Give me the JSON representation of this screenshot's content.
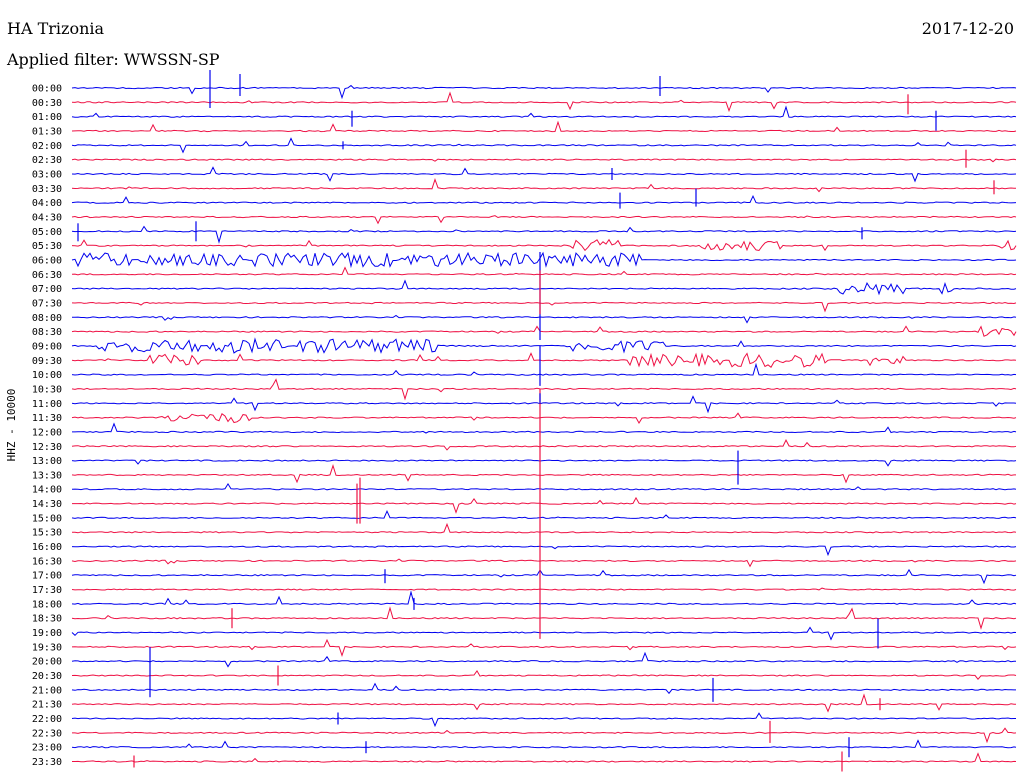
{
  "header": {
    "station": "HA Trizonia",
    "date": "2017-12-20",
    "filter_label": "Applied filter:",
    "filter_value": "WWSSN-SP"
  },
  "colors": {
    "blue_trace": "#0000ee",
    "red_trace": "#ee1144",
    "text": "#000000",
    "background": "#ffffff"
  },
  "chart_data": {
    "type": "line",
    "title": "",
    "ylabel": "HHZ - 10000",
    "xlabel": "",
    "grid": false,
    "legend": "none",
    "series_colors": [
      "#0000ee",
      "#ee1144"
    ],
    "rows": [
      {
        "label": "00:00",
        "color": "#0000ee"
      },
      {
        "label": "00:30",
        "color": "#ee1144"
      },
      {
        "label": "01:00",
        "color": "#0000ee"
      },
      {
        "label": "01:30",
        "color": "#ee1144"
      },
      {
        "label": "02:00",
        "color": "#0000ee"
      },
      {
        "label": "02:30",
        "color": "#ee1144"
      },
      {
        "label": "03:00",
        "color": "#0000ee"
      },
      {
        "label": "03:30",
        "color": "#ee1144"
      },
      {
        "label": "04:00",
        "color": "#0000ee"
      },
      {
        "label": "04:30",
        "color": "#ee1144"
      },
      {
        "label": "05:00",
        "color": "#0000ee"
      },
      {
        "label": "05:30",
        "color": "#ee1144"
      },
      {
        "label": "06:00",
        "color": "#0000ee"
      },
      {
        "label": "06:30",
        "color": "#ee1144"
      },
      {
        "label": "07:00",
        "color": "#0000ee"
      },
      {
        "label": "07:30",
        "color": "#ee1144"
      },
      {
        "label": "08:00",
        "color": "#0000ee"
      },
      {
        "label": "08:30",
        "color": "#ee1144"
      },
      {
        "label": "09:00",
        "color": "#0000ee"
      },
      {
        "label": "09:30",
        "color": "#ee1144"
      },
      {
        "label": "10:00",
        "color": "#0000ee"
      },
      {
        "label": "10:30",
        "color": "#ee1144"
      },
      {
        "label": "11:00",
        "color": "#0000ee"
      },
      {
        "label": "11:30",
        "color": "#ee1144"
      },
      {
        "label": "12:00",
        "color": "#0000ee"
      },
      {
        "label": "12:30",
        "color": "#ee1144"
      },
      {
        "label": "13:00",
        "color": "#0000ee"
      },
      {
        "label": "13:30",
        "color": "#ee1144"
      },
      {
        "label": "14:00",
        "color": "#0000ee"
      },
      {
        "label": "14:30",
        "color": "#ee1144"
      },
      {
        "label": "15:00",
        "color": "#0000ee"
      },
      {
        "label": "15:30",
        "color": "#ee1144"
      },
      {
        "label": "16:00",
        "color": "#0000ee"
      },
      {
        "label": "16:30",
        "color": "#ee1144"
      },
      {
        "label": "17:00",
        "color": "#0000ee"
      },
      {
        "label": "17:30",
        "color": "#ee1144"
      },
      {
        "label": "18:00",
        "color": "#0000ee"
      },
      {
        "label": "18:30",
        "color": "#ee1144"
      },
      {
        "label": "19:00",
        "color": "#0000ee"
      },
      {
        "label": "19:30",
        "color": "#ee1144"
      },
      {
        "label": "20:00",
        "color": "#0000ee"
      },
      {
        "label": "20:30",
        "color": "#ee1144"
      },
      {
        "label": "21:00",
        "color": "#0000ee"
      },
      {
        "label": "21:30",
        "color": "#ee1144"
      },
      {
        "label": "22:00",
        "color": "#0000ee"
      },
      {
        "label": "22:30",
        "color": "#ee1144"
      },
      {
        "label": "23:00",
        "color": "#0000ee"
      },
      {
        "label": "23:30",
        "color": "#ee1144"
      }
    ]
  }
}
